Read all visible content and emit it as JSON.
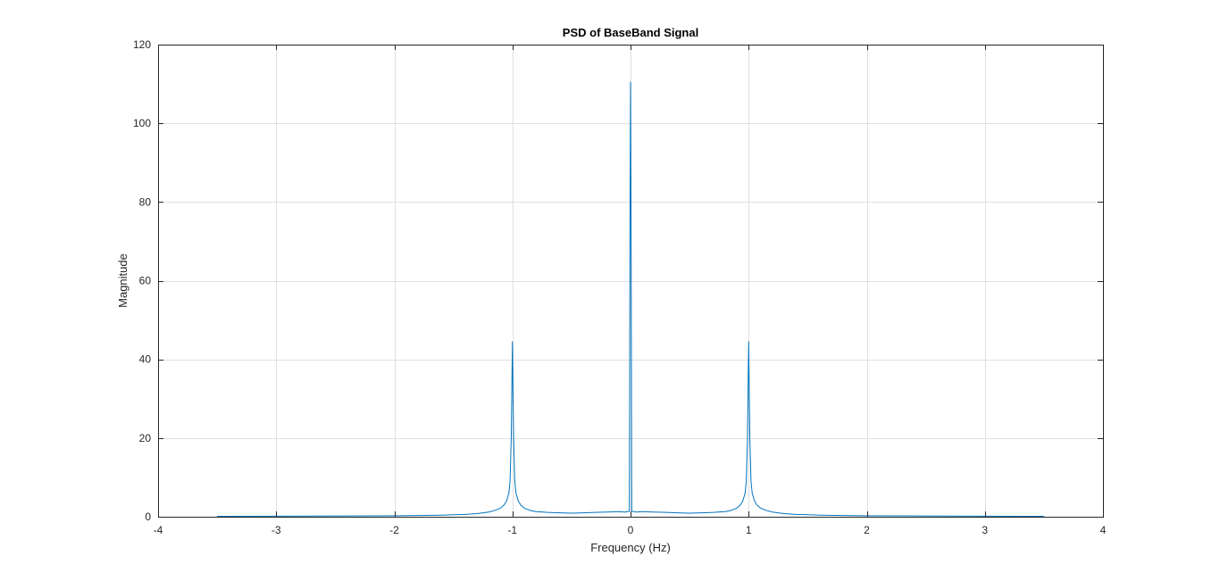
{
  "chart_data": {
    "type": "line",
    "title": "PSD of BaseBand Signal",
    "xlabel": "Frequency (Hz)",
    "ylabel": "Magnitude",
    "xlim": [
      -4,
      4
    ],
    "ylim": [
      0,
      120
    ],
    "x_ticks": [
      -4,
      -3,
      -2,
      -1,
      0,
      1,
      2,
      3,
      4
    ],
    "y_ticks": [
      0,
      20,
      40,
      60,
      80,
      100,
      120
    ],
    "x_tick_labels": [
      "-4",
      "-3",
      "-2",
      "-1",
      "0",
      "1",
      "2",
      "3",
      "4"
    ],
    "y_tick_labels": [
      "0",
      "20",
      "40",
      "60",
      "80",
      "100",
      "120"
    ],
    "grid": true,
    "box": true,
    "series_color": "#0072bd",
    "series": [
      {
        "x": [
          -3.5,
          -3.0,
          -2.5,
          -2.0,
          -1.8,
          -1.6,
          -1.5,
          -1.4,
          -1.3,
          -1.2,
          -1.15,
          -1.1,
          -1.07,
          -1.05,
          -1.03,
          -1.02,
          -1.01,
          -1.005,
          -1.0,
          -0.995,
          -0.99,
          -0.98,
          -0.97,
          -0.95,
          -0.93,
          -0.9,
          -0.85,
          -0.8,
          -0.7,
          -0.6,
          -0.5,
          -0.4,
          -0.3,
          -0.2,
          -0.1,
          -0.05,
          -0.01,
          -0.005,
          0.0,
          0.005,
          0.01,
          0.05,
          0.1,
          0.2,
          0.3,
          0.4,
          0.5,
          0.6,
          0.7,
          0.8,
          0.85,
          0.9,
          0.93,
          0.95,
          0.97,
          0.98,
          0.99,
          0.995,
          1.0,
          1.005,
          1.01,
          1.02,
          1.03,
          1.05,
          1.07,
          1.1,
          1.15,
          1.2,
          1.3,
          1.4,
          1.5,
          1.6,
          1.8,
          2.0,
          2.5,
          3.0,
          3.5
        ],
        "y": [
          0.1,
          0.15,
          0.2,
          0.25,
          0.3,
          0.4,
          0.5,
          0.6,
          0.8,
          1.2,
          1.6,
          2.2,
          3.0,
          4.0,
          6.0,
          9.0,
          20.0,
          32.0,
          44.5,
          32.0,
          20.0,
          9.0,
          6.0,
          4.0,
          3.0,
          2.2,
          1.6,
          1.3,
          1.1,
          1.0,
          0.9,
          1.0,
          1.1,
          1.2,
          1.3,
          1.2,
          1.4,
          70.0,
          110.5,
          70.0,
          1.4,
          1.2,
          1.3,
          1.2,
          1.1,
          1.0,
          0.9,
          1.0,
          1.1,
          1.3,
          1.6,
          2.2,
          3.0,
          4.0,
          6.0,
          9.0,
          20.0,
          32.0,
          44.5,
          32.0,
          20.0,
          9.0,
          6.0,
          4.0,
          3.0,
          2.2,
          1.6,
          1.2,
          0.8,
          0.6,
          0.5,
          0.4,
          0.3,
          0.25,
          0.2,
          0.15,
          0.1
        ]
      }
    ]
  }
}
